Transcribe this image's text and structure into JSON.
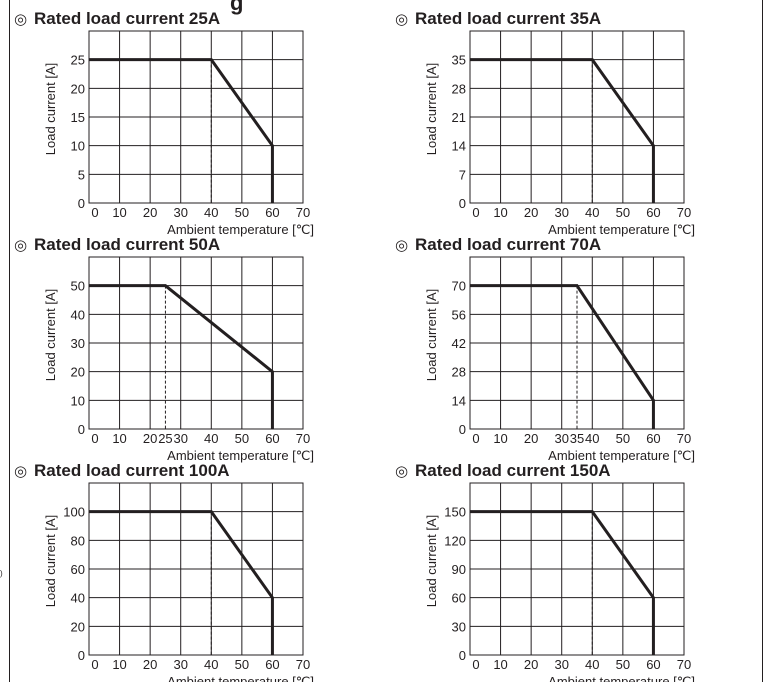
{
  "header": {
    "partial_heading": "g"
  },
  "side_mark": ")",
  "chart_data": [
    {
      "type": "line",
      "title_mark": "◎",
      "title": "Rated load current 25A",
      "xlabel": "Ambient temperature [℃]",
      "ylabel": "Load current [A]",
      "xlim": [
        0,
        70
      ],
      "ylim": [
        0,
        30
      ],
      "x_ticks": [
        0,
        10,
        20,
        30,
        40,
        50,
        60,
        70
      ],
      "y_ticks": [
        0,
        5,
        10,
        15,
        20,
        25
      ],
      "x_tick_labels": [
        "0",
        "10",
        "20",
        "30",
        "40",
        "50",
        "60",
        "70"
      ],
      "y_tick_labels": [
        "0",
        "5",
        "10",
        "15",
        "20",
        "25"
      ],
      "x_grid": [
        0,
        10,
        20,
        30,
        40,
        50,
        60,
        70
      ],
      "y_grid": [
        0,
        5,
        10,
        15,
        20,
        25,
        30
      ],
      "grid": true,
      "series": [
        {
          "x": [
            0,
            40,
            60,
            60
          ],
          "y": [
            25,
            25,
            10,
            0
          ]
        }
      ],
      "marker_x": 40
    },
    {
      "type": "line",
      "title_mark": "◎",
      "title": "Rated load current 35A",
      "xlabel": "Ambient temperature [℃]",
      "ylabel": "Load current [A]",
      "xlim": [
        0,
        70
      ],
      "ylim": [
        0,
        42
      ],
      "x_ticks": [
        0,
        10,
        20,
        30,
        40,
        50,
        60,
        70
      ],
      "y_ticks": [
        0,
        7,
        14,
        21,
        28,
        35
      ],
      "x_tick_labels": [
        "0",
        "10",
        "20",
        "30",
        "40",
        "50",
        "60",
        "70"
      ],
      "y_tick_labels": [
        "0",
        "7",
        "14",
        "21",
        "28",
        "35"
      ],
      "x_grid": [
        0,
        10,
        20,
        30,
        40,
        50,
        60,
        70
      ],
      "y_grid": [
        0,
        7,
        14,
        21,
        28,
        35,
        42
      ],
      "grid": true,
      "series": [
        {
          "x": [
            0,
            40,
            60,
            60
          ],
          "y": [
            35,
            35,
            14,
            0
          ]
        }
      ],
      "marker_x": 40
    },
    {
      "type": "line",
      "title_mark": "◎",
      "title": "Rated load current 50A",
      "xlabel": "Ambient temperature [℃]",
      "ylabel": "Load current [A]",
      "xlim": [
        0,
        70
      ],
      "ylim": [
        0,
        60
      ],
      "x_ticks": [
        0,
        10,
        20,
        25,
        30,
        40,
        50,
        60,
        70
      ],
      "y_ticks": [
        0,
        10,
        20,
        30,
        40,
        50
      ],
      "x_tick_labels": [
        "0",
        "10",
        "20",
        "25",
        "30",
        "40",
        "50",
        "60",
        "70"
      ],
      "y_tick_labels": [
        "0",
        "10",
        "20",
        "30",
        "40",
        "50"
      ],
      "x_grid": [
        0,
        10,
        20,
        30,
        40,
        50,
        60,
        70
      ],
      "y_grid": [
        0,
        10,
        20,
        30,
        40,
        50,
        60
      ],
      "grid": true,
      "series": [
        {
          "x": [
            0,
            25,
            60,
            60
          ],
          "y": [
            50,
            50,
            20,
            0
          ]
        }
      ],
      "marker_x": 25
    },
    {
      "type": "line",
      "title_mark": "◎",
      "title": "Rated load current 70A",
      "xlabel": "Ambient temperature [℃]",
      "ylabel": "Load current [A]",
      "xlim": [
        0,
        70
      ],
      "ylim": [
        0,
        84
      ],
      "x_ticks": [
        0,
        10,
        20,
        30,
        35,
        40,
        50,
        60,
        70
      ],
      "y_ticks": [
        0,
        14,
        28,
        42,
        56,
        70
      ],
      "x_tick_labels": [
        "0",
        "10",
        "20",
        "30",
        "35",
        "40",
        "50",
        "60",
        "70"
      ],
      "y_tick_labels": [
        "0",
        "14",
        "28",
        "42",
        "56",
        "70"
      ],
      "x_grid": [
        0,
        10,
        20,
        30,
        40,
        50,
        60,
        70
      ],
      "y_grid": [
        0,
        14,
        28,
        42,
        56,
        70,
        84
      ],
      "grid": true,
      "series": [
        {
          "x": [
            0,
            35,
            60,
            60
          ],
          "y": [
            70,
            70,
            14,
            0
          ]
        }
      ],
      "marker_x": 35
    },
    {
      "type": "line",
      "title_mark": "◎",
      "title": "Rated load current 100A",
      "xlabel": "Ambient temperature [℃]",
      "ylabel": "Load current [A]",
      "xlim": [
        0,
        70
      ],
      "ylim": [
        0,
        120
      ],
      "x_ticks": [
        0,
        10,
        20,
        30,
        40,
        50,
        60,
        70
      ],
      "y_ticks": [
        0,
        20,
        40,
        60,
        80,
        100
      ],
      "x_tick_labels": [
        "0",
        "10",
        "20",
        "30",
        "40",
        "50",
        "60",
        "70"
      ],
      "y_tick_labels": [
        "0",
        "20",
        "40",
        "60",
        "80",
        "100"
      ],
      "x_grid": [
        0,
        10,
        20,
        30,
        40,
        50,
        60,
        70
      ],
      "y_grid": [
        0,
        20,
        40,
        60,
        80,
        100,
        120
      ],
      "grid": true,
      "series": [
        {
          "x": [
            0,
            40,
            60,
            60
          ],
          "y": [
            100,
            100,
            40,
            0
          ]
        }
      ],
      "marker_x": 40
    },
    {
      "type": "line",
      "title_mark": "◎",
      "title": "Rated load current 150A",
      "xlabel": "Ambient temperature [℃]",
      "ylabel": "Load current [A]",
      "xlim": [
        0,
        70
      ],
      "ylim": [
        0,
        180
      ],
      "x_ticks": [
        0,
        10,
        20,
        30,
        40,
        50,
        60,
        70
      ],
      "y_ticks": [
        0,
        30,
        60,
        90,
        120,
        150
      ],
      "x_tick_labels": [
        "0",
        "10",
        "20",
        "30",
        "40",
        "50",
        "60",
        "70"
      ],
      "y_tick_labels": [
        "0",
        "30",
        "60",
        "90",
        "120",
        "150"
      ],
      "x_grid": [
        0,
        10,
        20,
        30,
        40,
        50,
        60,
        70
      ],
      "y_grid": [
        0,
        30,
        60,
        90,
        120,
        150,
        180
      ],
      "grid": true,
      "series": [
        {
          "x": [
            0,
            40,
            60,
            60
          ],
          "y": [
            150,
            150,
            60,
            0
          ]
        }
      ],
      "marker_x": 40
    }
  ]
}
